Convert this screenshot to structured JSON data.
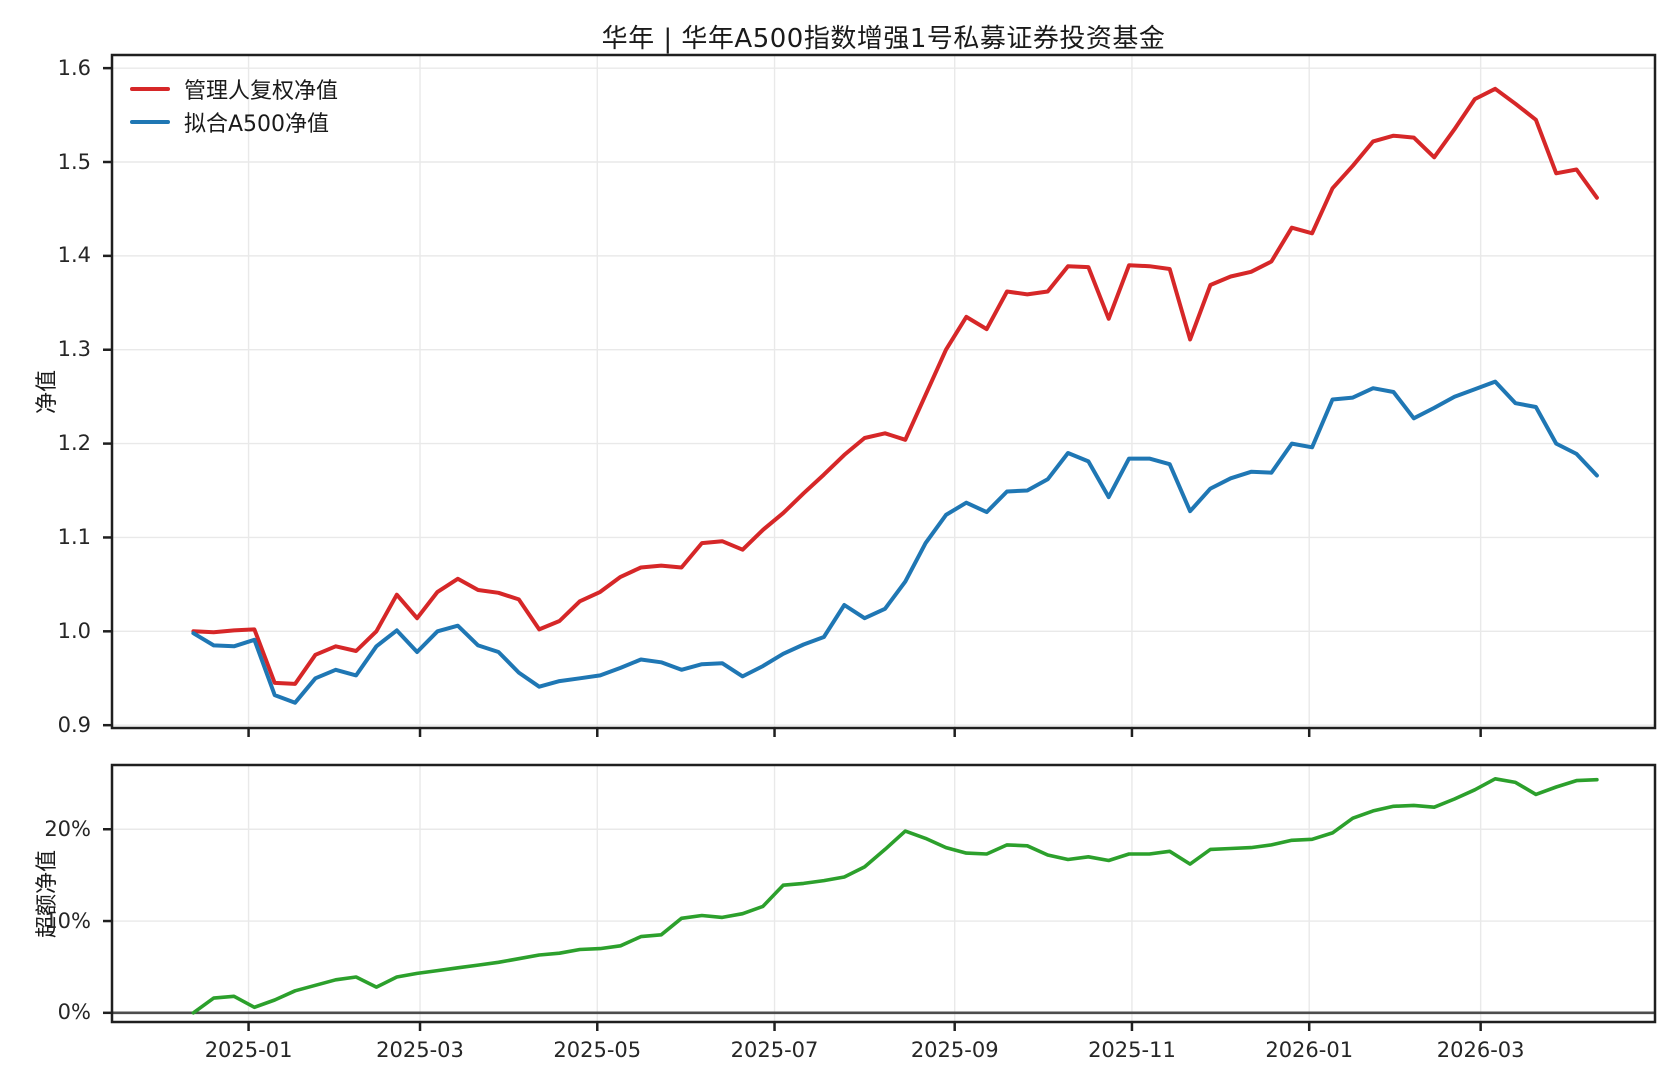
{
  "title": "华年 | 华年A500指数增强1号私募证券投资基金",
  "colors": {
    "manager_line": "#d62728",
    "fitted_line": "#1f77b4",
    "excess_line": "#2ca02c",
    "grid": "#e9e9e9",
    "spine": "#1f1f1f",
    "zero_line": "#4d4d4d",
    "text": "#262626"
  },
  "x_axis": {
    "range": [
      "2024-11-15",
      "2026-04-30"
    ],
    "ticks": [
      {
        "date": "2025-01-01",
        "label": "2025-01"
      },
      {
        "date": "2025-03-01",
        "label": "2025-03"
      },
      {
        "date": "2025-05-01",
        "label": "2025-05"
      },
      {
        "date": "2025-07-01",
        "label": "2025-07"
      },
      {
        "date": "2025-09-01",
        "label": "2025-09"
      },
      {
        "date": "2025-11-01",
        "label": "2025-11"
      },
      {
        "date": "2026-01-01",
        "label": "2026-01"
      },
      {
        "date": "2026-03-01",
        "label": "2026-03"
      }
    ],
    "dates": [
      "2024-12-13",
      "2024-12-20",
      "2024-12-27",
      "2025-01-03",
      "2025-01-10",
      "2025-01-17",
      "2025-01-24",
      "2025-01-31",
      "2025-02-07",
      "2025-02-14",
      "2025-02-21",
      "2025-02-28",
      "2025-03-07",
      "2025-03-14",
      "2025-03-21",
      "2025-03-28",
      "2025-04-04",
      "2025-04-11",
      "2025-04-18",
      "2025-04-25",
      "2025-05-02",
      "2025-05-09",
      "2025-05-16",
      "2025-05-23",
      "2025-05-30",
      "2025-06-06",
      "2025-06-13",
      "2025-06-20",
      "2025-06-27",
      "2025-07-04",
      "2025-07-11",
      "2025-07-18",
      "2025-07-25",
      "2025-08-01",
      "2025-08-08",
      "2025-08-15",
      "2025-08-22",
      "2025-08-29",
      "2025-09-05",
      "2025-09-12",
      "2025-09-19",
      "2025-09-26",
      "2025-10-03",
      "2025-10-10",
      "2025-10-17",
      "2025-10-24",
      "2025-10-31",
      "2025-11-07",
      "2025-11-14",
      "2025-11-21",
      "2025-11-28",
      "2025-12-05",
      "2025-12-12",
      "2025-12-19",
      "2025-12-26",
      "2026-01-02",
      "2026-01-09",
      "2026-01-16",
      "2026-01-23",
      "2026-01-30",
      "2026-02-06",
      "2026-02-13",
      "2026-02-20",
      "2026-02-27",
      "2026-03-06",
      "2026-03-13",
      "2026-03-20",
      "2026-03-27",
      "2026-04-03",
      "2026-04-10"
    ]
  },
  "chart_data": [
    {
      "type": "line",
      "panel": "nav",
      "ylabel": "净值",
      "ylim": [
        0.897,
        1.614
      ],
      "grid": true,
      "legend_position": "upper left",
      "yticks": [
        {
          "v": 0.9,
          "label": "0.9"
        },
        {
          "v": 1.0,
          "label": "1.0"
        },
        {
          "v": 1.1,
          "label": "1.1"
        },
        {
          "v": 1.2,
          "label": "1.2"
        },
        {
          "v": 1.3,
          "label": "1.3"
        },
        {
          "v": 1.4,
          "label": "1.4"
        },
        {
          "v": 1.5,
          "label": "1.5"
        },
        {
          "v": 1.6,
          "label": "1.6"
        }
      ],
      "series": [
        {
          "name": "管理人复权净值",
          "color": "#d62728",
          "values": [
            1.0,
            0.999,
            1.001,
            1.002,
            0.945,
            0.944,
            0.975,
            0.984,
            0.979,
            1.0,
            1.039,
            1.014,
            1.042,
            1.056,
            1.044,
            1.041,
            1.034,
            1.002,
            1.011,
            1.032,
            1.042,
            1.058,
            1.068,
            1.07,
            1.068,
            1.094,
            1.096,
            1.087,
            1.108,
            1.126,
            1.147,
            1.167,
            1.188,
            1.206,
            1.211,
            1.204,
            1.252,
            1.3,
            1.335,
            1.322,
            1.362,
            1.359,
            1.362,
            1.389,
            1.388,
            1.333,
            1.39,
            1.389,
            1.386,
            1.311,
            1.369,
            1.378,
            1.383,
            1.394,
            1.43,
            1.424,
            1.472,
            1.496,
            1.522,
            1.528,
            1.526,
            1.505,
            1.535,
            1.567,
            1.578,
            1.562,
            1.545,
            1.488,
            1.492,
            1.462
          ]
        },
        {
          "name": "拟合A500净值",
          "color": "#1f77b4",
          "values": [
            0.998,
            0.985,
            0.984,
            0.991,
            0.932,
            0.924,
            0.95,
            0.959,
            0.953,
            0.984,
            1.001,
            0.978,
            1.0,
            1.006,
            0.985,
            0.978,
            0.956,
            0.941,
            0.947,
            0.95,
            0.953,
            0.961,
            0.97,
            0.967,
            0.959,
            0.965,
            0.966,
            0.952,
            0.963,
            0.976,
            0.986,
            0.994,
            1.028,
            1.014,
            1.024,
            1.053,
            1.094,
            1.124,
            1.137,
            1.127,
            1.149,
            1.15,
            1.162,
            1.19,
            1.181,
            1.143,
            1.184,
            1.184,
            1.178,
            1.128,
            1.152,
            1.163,
            1.17,
            1.169,
            1.2,
            1.196,
            1.247,
            1.249,
            1.259,
            1.255,
            1.227,
            1.238,
            1.25,
            1.258,
            1.266,
            1.243,
            1.239,
            1.2,
            1.189,
            1.166
          ]
        }
      ]
    },
    {
      "type": "line",
      "panel": "excess",
      "ylabel": "超额净值",
      "ylim": [
        -1.0,
        27.0
      ],
      "unit": "%",
      "grid": true,
      "zero_line": true,
      "yticks": [
        {
          "v": 0,
          "label": "0%"
        },
        {
          "v": 10,
          "label": "10%"
        },
        {
          "v": 20,
          "label": "20%"
        }
      ],
      "series": [
        {
          "name": "超额净值",
          "color": "#2ca02c",
          "values": [
            0.0,
            1.6,
            1.8,
            0.6,
            1.4,
            2.4,
            3.0,
            3.6,
            3.9,
            2.8,
            3.9,
            4.3,
            4.6,
            4.9,
            5.2,
            5.5,
            5.9,
            6.3,
            6.5,
            6.9,
            7.0,
            7.3,
            8.3,
            8.5,
            10.3,
            10.6,
            10.4,
            10.8,
            11.6,
            13.9,
            14.1,
            14.4,
            14.8,
            15.9,
            17.8,
            19.8,
            19.0,
            18.0,
            17.4,
            17.3,
            18.3,
            18.2,
            17.2,
            16.7,
            17.0,
            16.6,
            17.3,
            17.3,
            17.6,
            16.2,
            17.8,
            17.9,
            18.0,
            18.3,
            18.8,
            18.9,
            19.6,
            21.2,
            22.0,
            22.5,
            22.6,
            22.4,
            23.3,
            24.3,
            25.5,
            25.1,
            23.8,
            24.6,
            25.3,
            25.4
          ]
        }
      ]
    }
  ]
}
